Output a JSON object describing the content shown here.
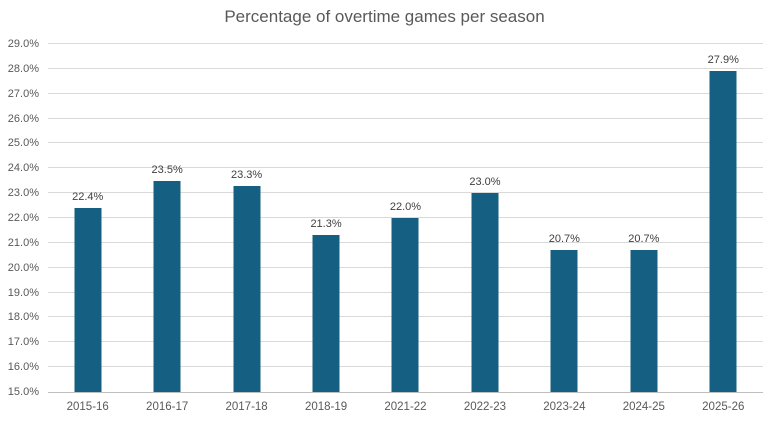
{
  "chart_data": {
    "type": "bar",
    "title": "Percentage of overtime games per season",
    "categories": [
      "2015-16",
      "2016-17",
      "2017-18",
      "2018-19",
      "2021-22",
      "2022-23",
      "2023-24",
      "2024-25",
      "2025-26"
    ],
    "values": [
      22.4,
      23.5,
      23.3,
      21.3,
      22.0,
      23.0,
      20.7,
      20.7,
      27.9
    ],
    "data_labels": [
      "22.4%",
      "23.5%",
      "23.3%",
      "21.3%",
      "22.0%",
      "23.0%",
      "20.7%",
      "20.7%",
      "27.9%"
    ],
    "xlabel": "",
    "ylabel": "",
    "ylim": [
      15,
      29
    ],
    "y_ticks": [
      {
        "value": 15,
        "label": "15.0%"
      },
      {
        "value": 16,
        "label": "16.0%"
      },
      {
        "value": 17,
        "label": "17.0%"
      },
      {
        "value": 18,
        "label": "18.0%"
      },
      {
        "value": 19,
        "label": "19.0%"
      },
      {
        "value": 20,
        "label": "20.0%"
      },
      {
        "value": 21,
        "label": "21.0%"
      },
      {
        "value": 22,
        "label": "22.0%"
      },
      {
        "value": 23,
        "label": "23.0%"
      },
      {
        "value": 24,
        "label": "24.0%"
      },
      {
        "value": 25,
        "label": "25.0%"
      },
      {
        "value": 26,
        "label": "26.0%"
      },
      {
        "value": 27,
        "label": "27.0%"
      },
      {
        "value": 28,
        "label": "28.0%"
      },
      {
        "value": 29,
        "label": "29.0%"
      }
    ],
    "grid": true,
    "legend": "none",
    "colors": {
      "bar": "#156082",
      "title": "#595959",
      "axis_labels": "#595959",
      "data_labels": "#404040",
      "gridline": "#d9d9d9",
      "axis_line": "#bfbfbf",
      "background": "#ffffff"
    }
  }
}
